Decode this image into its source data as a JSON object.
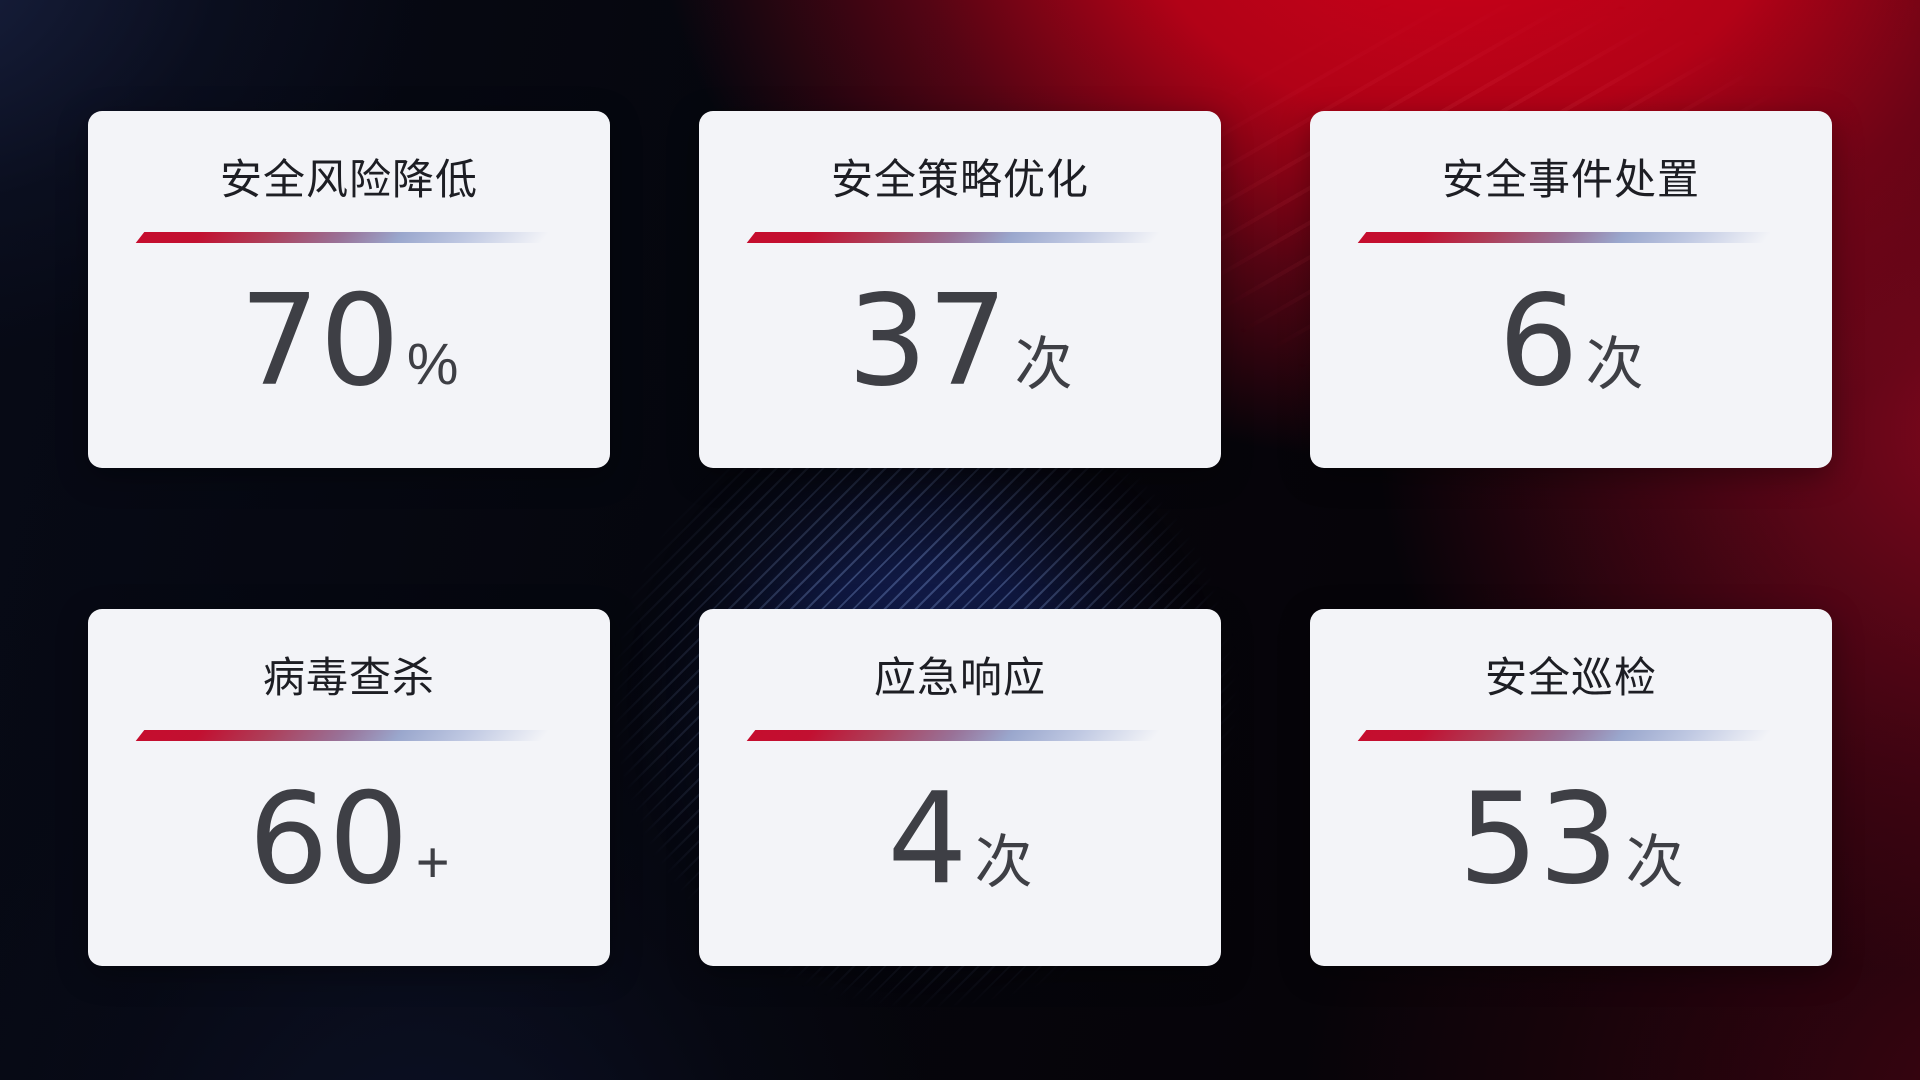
{
  "dashboard": {
    "cards": [
      {
        "title": "安全风险降低",
        "value": "70",
        "unit": "%"
      },
      {
        "title": "安全策略优化",
        "value": "37",
        "unit": "次"
      },
      {
        "title": "安全事件处置",
        "value": "6",
        "unit": "次"
      },
      {
        "title": "病毒查杀",
        "value": "60",
        "unit": "+"
      },
      {
        "title": "应急响应",
        "value": "4",
        "unit": "次"
      },
      {
        "title": "安全巡检",
        "value": "53",
        "unit": "次"
      }
    ],
    "colors": {
      "card_background": "#f3f4f8",
      "title_text": "#1d1e24",
      "value_text": "#3e3f45",
      "divider_red": "#c50d2e",
      "divider_periwinkle": "#9fabcf",
      "background_red_accent": "#c40018",
      "background_blue_accent": "#1b2c6e"
    }
  }
}
